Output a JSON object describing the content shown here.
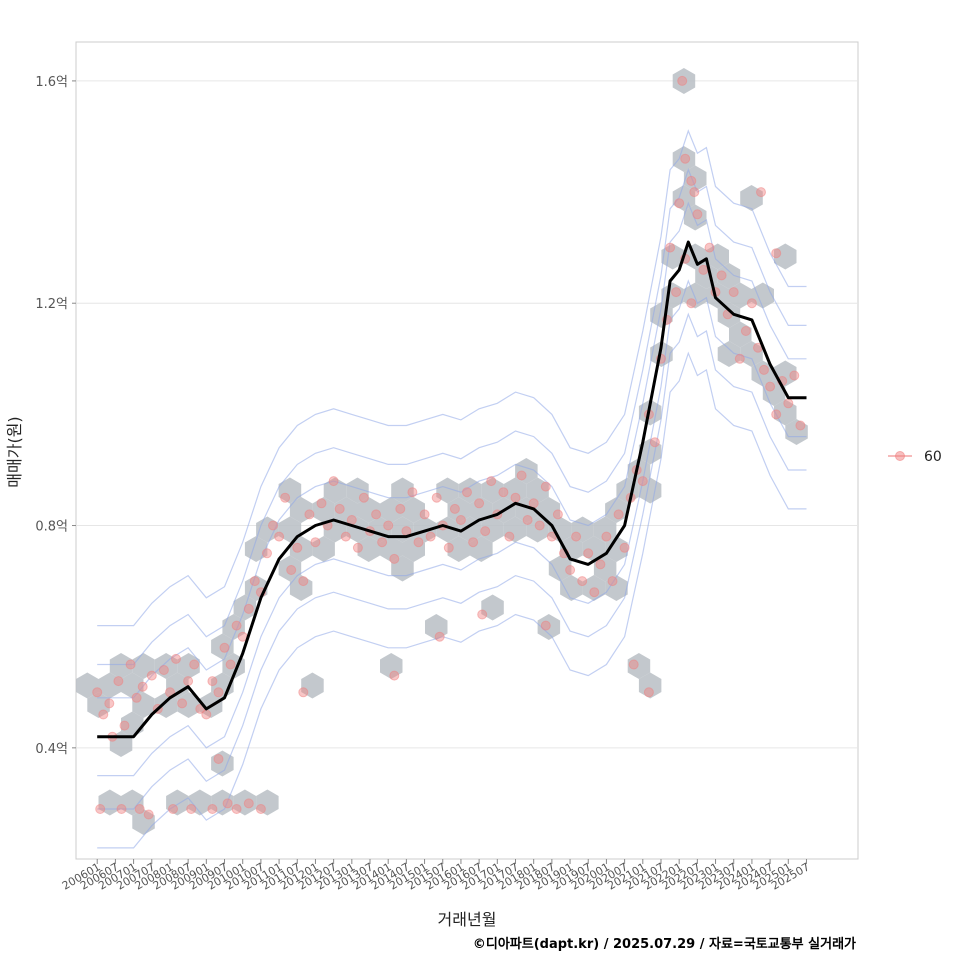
{
  "chart_data": {
    "type": "scatter",
    "xlabel": "거래년월",
    "ylabel": "매매가(원)",
    "caption": "©디아파트(dapt.kr) / 2025.07.29 / 자료=국토교통부 실거래가",
    "legend": {
      "position": "right",
      "entries": [
        {
          "label": "60",
          "color": "#f08080"
        }
      ]
    },
    "y_ticks": [
      {
        "value": 0.4,
        "label": "0.4억"
      },
      {
        "value": 0.8,
        "label": "0.8억"
      },
      {
        "value": 1.2,
        "label": "1.2억"
      },
      {
        "value": 1.6,
        "label": "1.6억"
      }
    ],
    "ylim": [
      0.2,
      1.67
    ],
    "xlim": [
      "2005-06",
      "2026-12"
    ],
    "x_tick_labels": [
      "200601",
      "200607",
      "200701",
      "200707",
      "200801",
      "200807",
      "200901",
      "200907",
      "201001",
      "201007",
      "201101",
      "201107",
      "201201",
      "201207",
      "201301",
      "201307",
      "201401",
      "201407",
      "201501",
      "201507",
      "201601",
      "201607",
      "201701",
      "201707",
      "201801",
      "201807",
      "201901",
      "201907",
      "202001",
      "202007",
      "202101",
      "202107",
      "202201",
      "202207",
      "202301",
      "202307",
      "202401",
      "202407",
      "202501",
      "202507"
    ],
    "grid": true,
    "colors": {
      "point": "#f08080",
      "line": "#000000",
      "hex": "#b8bec4",
      "contour": "#8fa8e8",
      "grid": "#e6e6e6"
    },
    "trend_line": [
      [
        "2006-01",
        0.42
      ],
      [
        "2006-07",
        0.42
      ],
      [
        "2007-01",
        0.42
      ],
      [
        "2007-07",
        0.46
      ],
      [
        "2008-01",
        0.49
      ],
      [
        "2008-07",
        0.51
      ],
      [
        "2009-01",
        0.47
      ],
      [
        "2009-07",
        0.49
      ],
      [
        "2010-01",
        0.57
      ],
      [
        "2010-07",
        0.67
      ],
      [
        "2011-01",
        0.74
      ],
      [
        "2011-07",
        0.78
      ],
      [
        "2012-01",
        0.8
      ],
      [
        "2012-07",
        0.81
      ],
      [
        "2013-01",
        0.8
      ],
      [
        "2013-07",
        0.79
      ],
      [
        "2014-01",
        0.78
      ],
      [
        "2014-07",
        0.78
      ],
      [
        "2015-01",
        0.79
      ],
      [
        "2015-07",
        0.8
      ],
      [
        "2016-01",
        0.79
      ],
      [
        "2016-07",
        0.81
      ],
      [
        "2017-01",
        0.82
      ],
      [
        "2017-07",
        0.84
      ],
      [
        "2018-01",
        0.83
      ],
      [
        "2018-07",
        0.8
      ],
      [
        "2019-01",
        0.74
      ],
      [
        "2019-07",
        0.73
      ],
      [
        "2020-01",
        0.75
      ],
      [
        "2020-07",
        0.8
      ],
      [
        "2021-01",
        0.95
      ],
      [
        "2021-07",
        1.12
      ],
      [
        "2021-10",
        1.24
      ],
      [
        "2022-01",
        1.26
      ],
      [
        "2022-04",
        1.31
      ],
      [
        "2022-07",
        1.27
      ],
      [
        "2022-10",
        1.28
      ],
      [
        "2023-01",
        1.21
      ],
      [
        "2023-07",
        1.18
      ],
      [
        "2024-01",
        1.17
      ],
      [
        "2024-04",
        1.13
      ],
      [
        "2024-07",
        1.09
      ],
      [
        "2025-01",
        1.03
      ],
      [
        "2025-07",
        1.03
      ]
    ],
    "points": [
      [
        "2006-01",
        0.5
      ],
      [
        "2006-03",
        0.46
      ],
      [
        "2006-05",
        0.48
      ],
      [
        "2006-06",
        0.42
      ],
      [
        "2006-08",
        0.52
      ],
      [
        "2006-10",
        0.44
      ],
      [
        "2006-12",
        0.55
      ],
      [
        "2007-02",
        0.49
      ],
      [
        "2007-04",
        0.51
      ],
      [
        "2007-07",
        0.53
      ],
      [
        "2007-09",
        0.47
      ],
      [
        "2007-11",
        0.54
      ],
      [
        "2008-01",
        0.5
      ],
      [
        "2008-03",
        0.56
      ],
      [
        "2008-05",
        0.48
      ],
      [
        "2008-07",
        0.52
      ],
      [
        "2008-09",
        0.55
      ],
      [
        "2008-11",
        0.47
      ],
      [
        "2009-01",
        0.46
      ],
      [
        "2009-03",
        0.52
      ],
      [
        "2009-05",
        0.5
      ],
      [
        "2009-07",
        0.58
      ],
      [
        "2009-09",
        0.55
      ],
      [
        "2009-11",
        0.62
      ],
      [
        "2010-01",
        0.6
      ],
      [
        "2010-03",
        0.65
      ],
      [
        "2010-05",
        0.7
      ],
      [
        "2010-07",
        0.68
      ],
      [
        "2010-09",
        0.75
      ],
      [
        "2010-11",
        0.8
      ],
      [
        "2011-01",
        0.78
      ],
      [
        "2011-03",
        0.85
      ],
      [
        "2011-05",
        0.72
      ],
      [
        "2011-07",
        0.76
      ],
      [
        "2011-09",
        0.7
      ],
      [
        "2011-11",
        0.82
      ],
      [
        "2012-01",
        0.77
      ],
      [
        "2012-03",
        0.84
      ],
      [
        "2012-05",
        0.8
      ],
      [
        "2012-07",
        0.88
      ],
      [
        "2012-09",
        0.83
      ],
      [
        "2012-11",
        0.78
      ],
      [
        "2013-01",
        0.81
      ],
      [
        "2013-03",
        0.76
      ],
      [
        "2013-05",
        0.85
      ],
      [
        "2013-07",
        0.79
      ],
      [
        "2013-09",
        0.82
      ],
      [
        "2013-11",
        0.77
      ],
      [
        "2014-01",
        0.8
      ],
      [
        "2014-03",
        0.74
      ],
      [
        "2014-05",
        0.83
      ],
      [
        "2014-07",
        0.79
      ],
      [
        "2014-09",
        0.86
      ],
      [
        "2014-11",
        0.77
      ],
      [
        "2015-01",
        0.82
      ],
      [
        "2015-03",
        0.78
      ],
      [
        "2015-05",
        0.85
      ],
      [
        "2015-07",
        0.8
      ],
      [
        "2015-09",
        0.76
      ],
      [
        "2015-11",
        0.83
      ],
      [
        "2016-01",
        0.81
      ],
      [
        "2016-03",
        0.86
      ],
      [
        "2016-05",
        0.77
      ],
      [
        "2016-07",
        0.84
      ],
      [
        "2016-09",
        0.79
      ],
      [
        "2016-11",
        0.88
      ],
      [
        "2017-01",
        0.82
      ],
      [
        "2017-03",
        0.86
      ],
      [
        "2017-05",
        0.78
      ],
      [
        "2017-07",
        0.85
      ],
      [
        "2017-09",
        0.89
      ],
      [
        "2017-11",
        0.81
      ],
      [
        "2018-01",
        0.84
      ],
      [
        "2018-03",
        0.8
      ],
      [
        "2018-05",
        0.87
      ],
      [
        "2018-07",
        0.78
      ],
      [
        "2018-09",
        0.82
      ],
      [
        "2018-11",
        0.75
      ],
      [
        "2019-01",
        0.72
      ],
      [
        "2019-03",
        0.78
      ],
      [
        "2019-05",
        0.7
      ],
      [
        "2019-07",
        0.75
      ],
      [
        "2019-09",
        0.68
      ],
      [
        "2019-11",
        0.73
      ],
      [
        "2020-01",
        0.78
      ],
      [
        "2020-03",
        0.7
      ],
      [
        "2020-05",
        0.82
      ],
      [
        "2020-07",
        0.76
      ],
      [
        "2020-09",
        0.85
      ],
      [
        "2020-11",
        0.9
      ],
      [
        "2021-01",
        0.88
      ],
      [
        "2021-03",
        1.0
      ],
      [
        "2021-05",
        0.95
      ],
      [
        "2021-07",
        1.1
      ],
      [
        "2021-09",
        1.17
      ],
      [
        "2021-10",
        1.3
      ],
      [
        "2021-12",
        1.22
      ],
      [
        "2022-01",
        1.38
      ],
      [
        "2022-03",
        1.28
      ],
      [
        "2022-05",
        1.42
      ],
      [
        "2022-07",
        1.36
      ],
      [
        "2022-09",
        1.26
      ],
      [
        "2022-11",
        1.3
      ],
      [
        "2023-01",
        1.22
      ],
      [
        "2023-03",
        1.25
      ],
      [
        "2023-05",
        1.18
      ],
      [
        "2023-07",
        1.22
      ],
      [
        "2023-09",
        1.1
      ],
      [
        "2023-11",
        1.15
      ],
      [
        "2024-01",
        1.2
      ],
      [
        "2024-03",
        1.12
      ],
      [
        "2024-05",
        1.08
      ],
      [
        "2024-07",
        1.05
      ],
      [
        "2024-09",
        1.0
      ],
      [
        "2024-11",
        1.06
      ],
      [
        "2025-01",
        1.02
      ],
      [
        "2025-03",
        1.07
      ],
      [
        "2025-05",
        0.98
      ],
      [
        "2006-02",
        0.29
      ],
      [
        "2006-09",
        0.29
      ],
      [
        "2007-03",
        0.29
      ],
      [
        "2007-06",
        0.28
      ],
      [
        "2008-02",
        0.29
      ],
      [
        "2008-08",
        0.29
      ],
      [
        "2009-03",
        0.29
      ],
      [
        "2009-08",
        0.3
      ],
      [
        "2009-11",
        0.29
      ],
      [
        "2010-03",
        0.3
      ],
      [
        "2010-07",
        0.29
      ],
      [
        "2021-03",
        0.5
      ],
      [
        "2020-10",
        0.55
      ],
      [
        "2015-06",
        0.6
      ],
      [
        "2014-03",
        0.53
      ],
      [
        "2016-08",
        0.64
      ],
      [
        "2018-05",
        0.62
      ],
      [
        "2011-09",
        0.5
      ],
      [
        "2009-05",
        0.38
      ],
      [
        "2022-02",
        1.6
      ],
      [
        "2022-03",
        1.46
      ],
      [
        "2022-06",
        1.4
      ],
      [
        "2024-04",
        1.4
      ],
      [
        "2024-09",
        1.29
      ],
      [
        "2022-05",
        1.2
      ]
    ]
  }
}
